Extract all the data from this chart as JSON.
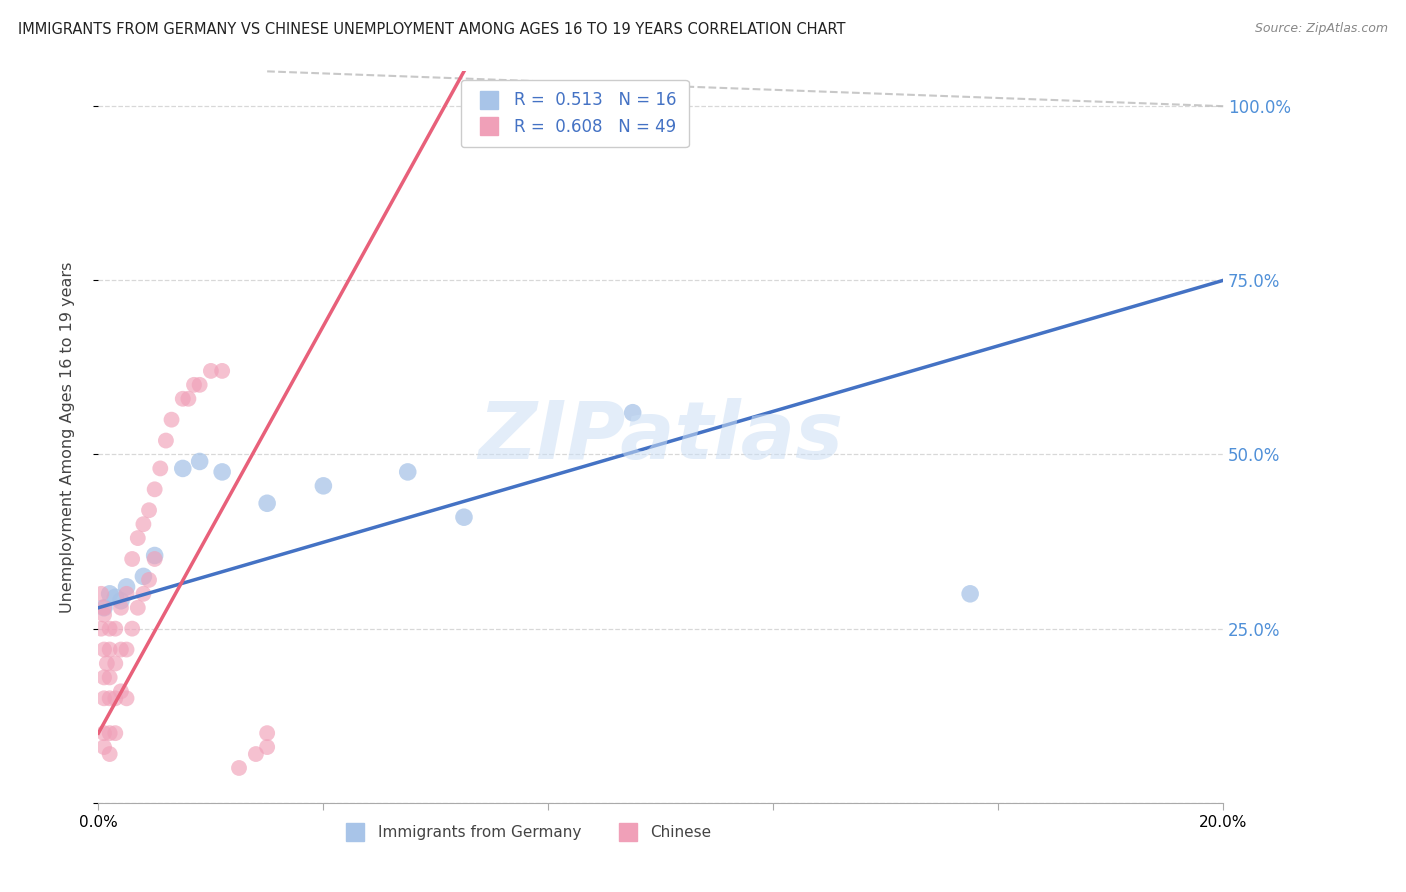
{
  "title": "IMMIGRANTS FROM GERMANY VS CHINESE UNEMPLOYMENT AMONG AGES 16 TO 19 YEARS CORRELATION CHART",
  "source": "Source: ZipAtlas.com",
  "ylabel": "Unemployment Among Ages 16 to 19 years",
  "xlim": [
    0.0,
    0.2
  ],
  "ylim": [
    0.0,
    1.05
  ],
  "germany_R": 0.513,
  "germany_N": 16,
  "chinese_R": 0.608,
  "chinese_N": 49,
  "germany_dot_color": "#a8c4e8",
  "chinese_dot_color": "#f0a0b8",
  "germany_line_color": "#4472c4",
  "chinese_line_color": "#e8607a",
  "right_tick_color": "#5090d8",
  "watermark": "ZIPatlas",
  "ref_line_color": "#bbbbbb",
  "grid_color": "#d8d8d8",
  "germany_x": [
    0.001,
    0.002,
    0.003,
    0.004,
    0.005,
    0.008,
    0.01,
    0.015,
    0.018,
    0.022,
    0.03,
    0.04,
    0.055,
    0.065,
    0.095,
    0.155
  ],
  "germany_y": [
    0.28,
    0.3,
    0.295,
    0.29,
    0.31,
    0.325,
    0.355,
    0.48,
    0.49,
    0.475,
    0.43,
    0.455,
    0.475,
    0.41,
    0.56,
    0.3
  ],
  "chinese_x": [
    0.0005,
    0.0005,
    0.001,
    0.001,
    0.001,
    0.001,
    0.001,
    0.001,
    0.001,
    0.0015,
    0.002,
    0.002,
    0.002,
    0.002,
    0.002,
    0.002,
    0.003,
    0.003,
    0.003,
    0.003,
    0.004,
    0.004,
    0.004,
    0.005,
    0.005,
    0.005,
    0.006,
    0.006,
    0.007,
    0.007,
    0.008,
    0.008,
    0.009,
    0.009,
    0.01,
    0.01,
    0.011,
    0.012,
    0.013,
    0.015,
    0.016,
    0.017,
    0.018,
    0.02,
    0.022,
    0.025,
    0.028,
    0.03,
    0.03
  ],
  "chinese_y": [
    0.25,
    0.3,
    0.27,
    0.28,
    0.22,
    0.18,
    0.15,
    0.1,
    0.08,
    0.2,
    0.25,
    0.22,
    0.18,
    0.15,
    0.1,
    0.07,
    0.25,
    0.2,
    0.15,
    0.1,
    0.28,
    0.22,
    0.16,
    0.3,
    0.22,
    0.15,
    0.35,
    0.25,
    0.38,
    0.28,
    0.4,
    0.3,
    0.42,
    0.32,
    0.45,
    0.35,
    0.48,
    0.52,
    0.55,
    0.58,
    0.58,
    0.6,
    0.6,
    0.62,
    0.62,
    0.05,
    0.07,
    0.08,
    0.1
  ],
  "blue_line_x0": 0.0,
  "blue_line_y0": 0.28,
  "blue_line_x1": 0.2,
  "blue_line_y1": 0.75,
  "pink_line_x0": 0.0,
  "pink_line_y0": 0.1,
  "pink_line_x1": 0.065,
  "pink_line_y1": 1.05,
  "dash_line_x0": 0.065,
  "dash_line_y0": 1.05,
  "dash_line_x1": 0.2,
  "dash_line_y1": 1.05
}
